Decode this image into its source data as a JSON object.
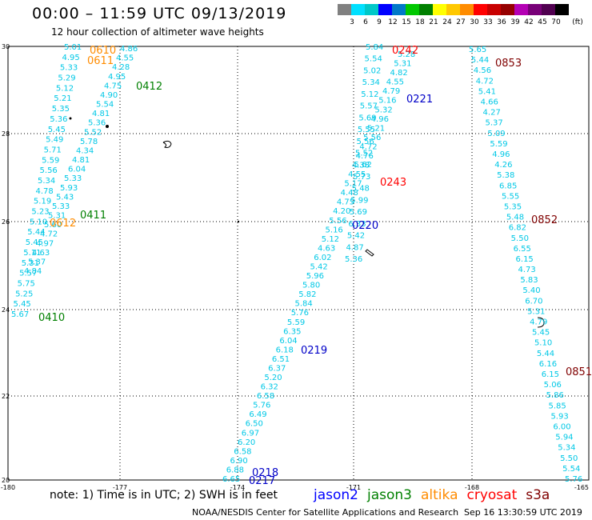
{
  "header": {
    "title": "00:00 – 11:59 UTC 09/13/2019",
    "subtitle": "12 hour collection of altimeter wave heights"
  },
  "scale": {
    "unit": "(ft)",
    "colors": [
      "#808080",
      "#00e0ff",
      "#00c8c8",
      "#0000ff",
      "#0078c8",
      "#00c800",
      "#008000",
      "#ffff00",
      "#ffc800",
      "#ff8c00",
      "#ff0000",
      "#c80000",
      "#960000",
      "#b400b4",
      "#780078",
      "#500050",
      "#000000"
    ],
    "labels": [
      "3",
      "6",
      "9",
      "12",
      "15",
      "18",
      "21",
      "24",
      "27",
      "30",
      "33",
      "36",
      "39",
      "42",
      "45",
      "70"
    ]
  },
  "axes": {
    "lat_labels": [
      "30",
      "28",
      "26",
      "24",
      "22",
      "20"
    ],
    "lon_labels": [
      "-180",
      "-177",
      "-174",
      "-171",
      "-168",
      "-165"
    ]
  },
  "tracks": [
    {
      "values": [
        "5.01",
        "4.95",
        "5.33",
        "5.29",
        "5.12",
        "5.21",
        "5.35",
        "5.36",
        "5.45",
        "5.49",
        "5.71",
        "5.59",
        "5.56",
        "5.34",
        "4.78",
        "5.19",
        "5.23",
        "5.10",
        "5.44",
        "5.45",
        "5.11",
        "5.31",
        "5.57",
        "5.75",
        "5.25",
        "5.45",
        "5.67"
      ]
    },
    {
      "values": [
        "4.86",
        "4.55",
        "4.28",
        "4.95",
        "4.75",
        "4.90",
        "5.54",
        "4.81",
        "5.36",
        "5.52",
        "5.78",
        "4.34",
        "4.81",
        "6.04",
        "5.33",
        "5.93",
        "5.43",
        "5.33",
        "5.31",
        "5.60",
        "4.72",
        "4.97",
        "4.63",
        "5.37",
        "4.84"
      ]
    },
    {
      "values": [
        "5.84",
        "5.54",
        "5.02",
        "5.34",
        "5.12",
        "5.57",
        "5.69",
        "5.55",
        "5.56",
        "5.52",
        "5.62",
        "5.73",
        "5.48",
        "5.99",
        "5.69",
        "6.33",
        "5.42",
        "4.87",
        "5.36"
      ]
    },
    {
      "values": [
        "5.28",
        "5.31",
        "4.82",
        "4.55",
        "4.79",
        "5.16",
        "5.32",
        "4.96",
        "5.21",
        "5.56",
        "4.72",
        "4.76",
        "4.38",
        "4.55",
        "5.17",
        "4.48",
        "4.75",
        "4.20",
        "5.56",
        "5.16",
        "5.12",
        "4.63",
        "6.02",
        "5.42",
        "5.96",
        "5.80",
        "5.82",
        "5.84",
        "5.76",
        "5.59",
        "6.35",
        "6.04",
        "6.18",
        "6.51",
        "6.37",
        "5.20",
        "6.32",
        "6.58",
        "5.76",
        "6.49",
        "6.50",
        "6.97",
        "6.20",
        "6.58",
        "6.90",
        "6.88",
        "6.65"
      ]
    },
    {
      "values": [
        "5.65",
        "5.44",
        "4.56",
        "4.72",
        "5.41",
        "4.66",
        "4.27",
        "5.37",
        "5.09",
        "5.59",
        "4.96",
        "4.26",
        "5.38",
        "6.85",
        "5.55",
        "5.35",
        "5.48",
        "6.82",
        "5.50",
        "6.55",
        "6.15",
        "4.73",
        "5.83",
        "5.40",
        "6.70",
        "5.31",
        "4.79",
        "5.45",
        "5.10",
        "5.44",
        "6.16",
        "6.15",
        "5.06",
        "5.86",
        "5.85",
        "5.93",
        "6.00",
        "5.94",
        "5.34",
        "5.50",
        "5.54",
        "5.76"
      ]
    }
  ],
  "pass_labels": [
    {
      "text": "0610",
      "color": "#ff8c00"
    },
    {
      "text": "0611",
      "color": "#ff8c00"
    },
    {
      "text": "0412",
      "color": "#008000"
    },
    {
      "text": "0411",
      "color": "#008000"
    },
    {
      "text": "0612",
      "color": "#ff8c00"
    },
    {
      "text": "0410",
      "color": "#008000"
    },
    {
      "text": "0242",
      "color": "#ff0000"
    },
    {
      "text": "0221",
      "color": "#0000c8"
    },
    {
      "text": "0243",
      "color": "#ff0000"
    },
    {
      "text": "0220",
      "color": "#0000c8"
    },
    {
      "text": "0219",
      "color": "#0000c8"
    },
    {
      "text": "0218",
      "color": "#0000c8"
    },
    {
      "text": "0217",
      "color": "#0000c8"
    },
    {
      "text": "0853",
      "color": "#800000"
    },
    {
      "text": "0852",
      "color": "#800000"
    },
    {
      "text": "0851",
      "color": "#800000"
    }
  ],
  "footer": {
    "note": "note:  1) Time is in UTC;  2) SWH is in feet",
    "legend": [
      {
        "name": "jason2",
        "color": "#0000ff"
      },
      {
        "name": "jason3",
        "color": "#008000"
      },
      {
        "name": "altika",
        "color": "#ff8c00"
      },
      {
        "name": "cryosat",
        "color": "#ff0000"
      },
      {
        "name": "s3a",
        "color": "#800000"
      }
    ],
    "credit": "NOAA/NESDIS Center for Satellite Applications and Research",
    "timestamp": "Sep 16 13:30:59 UTC 2019"
  }
}
